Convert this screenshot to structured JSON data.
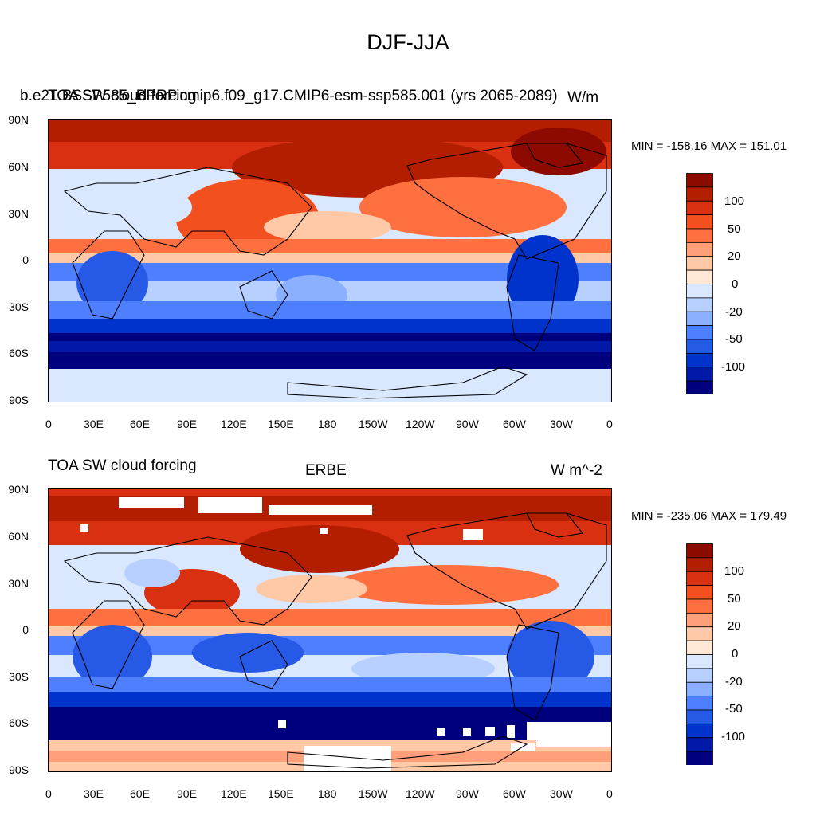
{
  "figure_title": "DJF-JJA",
  "colors": {
    "levels": [
      "#00007f",
      "#0019a6",
      "#0033cc",
      "#2659e6",
      "#4d7fff",
      "#8bb0ff",
      "#b8d0ff",
      "#d9e8ff",
      "#ffe8d6",
      "#ffc8a6",
      "#ffa07a",
      "#ff7040",
      "#f2501e",
      "#d83010",
      "#b41e00",
      "#8c0a00"
    ],
    "missing": "#ffffff",
    "coast": "#000000"
  },
  "colorbar_labels": [
    "100",
    "50",
    "20",
    "0",
    "-20",
    "-50",
    "-100"
  ],
  "lat_ticks": [
    "90N",
    "60N",
    "30N",
    "0",
    "30S",
    "60S",
    "90S"
  ],
  "lon_ticks": [
    "0",
    "30E",
    "60E",
    "90E",
    "120E",
    "150E",
    "180",
    "150W",
    "120W",
    "90W",
    "60W",
    "30W",
    "0"
  ],
  "panels": [
    {
      "left_title_overlap_a": "b.e21.BSSP585_BPRP.cmip6.f09_g17.CMIP6-esm-ssp585.001 (yrs 2065-2089)",
      "left_title_overlap_b": "TOA SW cloud forcing",
      "right_title": "W/m",
      "minmax": "MIN = -158.16 MAX = 151.01"
    },
    {
      "left_title": "TOA SW cloud forcing",
      "center_title": "ERBE",
      "right_title": "W m^-2",
      "minmax": "MIN = -235.06 MAX = 179.49"
    }
  ],
  "chart_data": {
    "type": "heatmap",
    "title": "DJF-JJA",
    "variable": "TOA SW cloud forcing",
    "season_difference": "DJF-JJA",
    "contour_levels": [
      -100,
      -50,
      -20,
      0,
      20,
      50,
      100
    ],
    "panels": [
      {
        "dataset": "b.e21.BSSP585_BPRP.cmip6.f09_g17.CMIP6-esm-ssp585.001 (yrs 2065-2089)",
        "units": "W/m",
        "min": -158.16,
        "max": 151.01
      },
      {
        "dataset": "ERBE",
        "units": "W m^-2",
        "min": -235.06,
        "max": 179.49
      }
    ]
  }
}
